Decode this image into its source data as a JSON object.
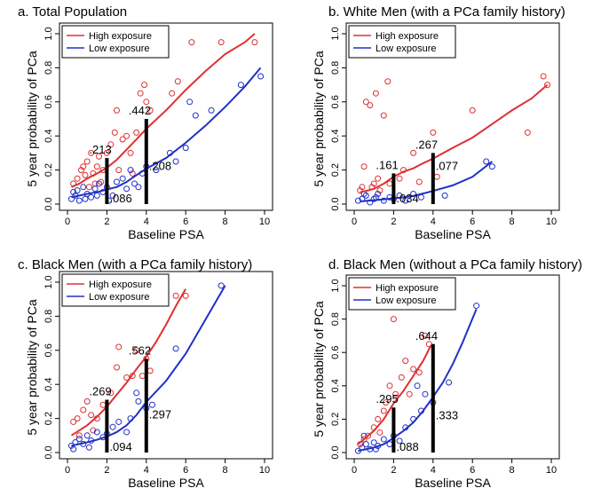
{
  "colors": {
    "high": "#e03030",
    "low": "#2030c8",
    "bar": "#000000",
    "axis": "#000000"
  },
  "chart_data": [
    {
      "type": "line",
      "title": "a. Total Population",
      "xlabel": "Baseline PSA",
      "ylabel": "5 year probability of PCa",
      "xlim": [
        0,
        10
      ],
      "ylim": [
        0,
        1.0
      ],
      "xticks": [
        "0",
        "2",
        "4",
        "6",
        "8",
        "10"
      ],
      "yticks": [
        "0.0",
        "0.2",
        "0.4",
        "0.6",
        "0.8",
        "1.0"
      ],
      "legend": {
        "position": "top-left",
        "entries": [
          "High exposure",
          "Low exposure"
        ]
      },
      "series": [
        {
          "name": "High exposure",
          "x": [
            0.2,
            0.6,
            1.0,
            1.5,
            2.0,
            2.5,
            3.0,
            3.5,
            4.0,
            5.0,
            6.0,
            7.0,
            8.0,
            9.0,
            9.5
          ],
          "y": [
            0.1,
            0.12,
            0.15,
            0.18,
            0.213,
            0.26,
            0.32,
            0.38,
            0.442,
            0.55,
            0.67,
            0.78,
            0.88,
            0.95,
            1.0
          ]
        },
        {
          "name": "Low exposure",
          "x": [
            0.2,
            0.6,
            1.0,
            1.5,
            2.0,
            2.5,
            3.0,
            3.5,
            4.0,
            5.0,
            6.0,
            7.0,
            8.0,
            9.0,
            9.8
          ],
          "y": [
            0.04,
            0.05,
            0.06,
            0.07,
            0.086,
            0.1,
            0.13,
            0.17,
            0.208,
            0.27,
            0.36,
            0.46,
            0.57,
            0.69,
            0.8
          ]
        }
      ],
      "scatter_high": [
        [
          0.3,
          0.12
        ],
        [
          0.5,
          0.15
        ],
        [
          0.7,
          0.2
        ],
        [
          0.8,
          0.22
        ],
        [
          1.0,
          0.25
        ],
        [
          1.2,
          0.3
        ],
        [
          1.3,
          0.18
        ],
        [
          1.5,
          0.22
        ],
        [
          1.6,
          0.28
        ],
        [
          1.8,
          0.2
        ],
        [
          2.0,
          0.3
        ],
        [
          2.2,
          0.35
        ],
        [
          2.4,
          0.42
        ],
        [
          2.5,
          0.55
        ],
        [
          2.8,
          0.38
        ],
        [
          3.0,
          0.4
        ],
        [
          3.2,
          0.3
        ],
        [
          3.5,
          0.42
        ],
        [
          3.7,
          0.65
        ],
        [
          3.9,
          0.7
        ],
        [
          4.0,
          0.6
        ],
        [
          4.2,
          0.55
        ],
        [
          5.3,
          0.65
        ],
        [
          5.6,
          0.72
        ],
        [
          6.3,
          0.95
        ],
        [
          7.8,
          0.95
        ],
        [
          9.5,
          0.95
        ],
        [
          1.1,
          0.1
        ],
        [
          0.9,
          0.17
        ],
        [
          1.4,
          0.12
        ],
        [
          1.7,
          0.13
        ],
        [
          2.6,
          0.2
        ],
        [
          3.3,
          0.18
        ]
      ],
      "scatter_low": [
        [
          0.2,
          0.03
        ],
        [
          0.4,
          0.05
        ],
        [
          0.5,
          0.08
        ],
        [
          0.6,
          0.02
        ],
        [
          0.8,
          0.1
        ],
        [
          1.0,
          0.06
        ],
        [
          1.2,
          0.04
        ],
        [
          1.4,
          0.09
        ],
        [
          1.6,
          0.12
        ],
        [
          1.8,
          0.07
        ],
        [
          2.0,
          0.1
        ],
        [
          2.3,
          0.05
        ],
        [
          2.5,
          0.13
        ],
        [
          2.8,
          0.15
        ],
        [
          3.0,
          0.09
        ],
        [
          3.2,
          0.2
        ],
        [
          3.4,
          0.12
        ],
        [
          3.6,
          0.1
        ],
        [
          3.8,
          0.18
        ],
        [
          4.0,
          0.22
        ],
        [
          4.5,
          0.2
        ],
        [
          5.2,
          0.3
        ],
        [
          5.5,
          0.25
        ],
        [
          6.2,
          0.6
        ],
        [
          6.5,
          0.52
        ],
        [
          7.3,
          0.55
        ],
        [
          8.8,
          0.7
        ],
        [
          9.8,
          0.75
        ],
        [
          6.0,
          0.33
        ],
        [
          0.3,
          0.07
        ],
        [
          0.9,
          0.03
        ],
        [
          1.5,
          0.05
        ],
        [
          2.1,
          0.02
        ]
      ],
      "bars": [
        {
          "x": 2,
          "y": 0.27,
          "label": ".213",
          "label_low": ".086"
        },
        {
          "x": 4,
          "y": 0.5,
          "label": ".442",
          "label_low": ".208"
        }
      ]
    },
    {
      "type": "line",
      "title": "b. White Men (with a PCa family history)",
      "xlabel": "Baseline PSA",
      "ylabel": "5 year probability of PCa",
      "xlim": [
        0,
        10
      ],
      "ylim": [
        0,
        1.0
      ],
      "xticks": [
        "0",
        "2",
        "4",
        "6",
        "8",
        "10"
      ],
      "yticks": [
        "0.0",
        "0.2",
        "0.4",
        "0.6",
        "0.8",
        "1.0"
      ],
      "legend": {
        "position": "top-left",
        "entries": [
          "High exposure",
          "Low exposure"
        ]
      },
      "series": [
        {
          "name": "High exposure",
          "x": [
            0.3,
            0.7,
            1.0,
            1.5,
            2.0,
            2.5,
            3.0,
            3.5,
            4.0,
            5.0,
            6.0,
            7.0,
            8.0,
            9.0,
            9.8
          ],
          "y": [
            0.07,
            0.08,
            0.09,
            0.12,
            0.161,
            0.19,
            0.21,
            0.24,
            0.267,
            0.33,
            0.39,
            0.47,
            0.55,
            0.62,
            0.7
          ]
        },
        {
          "name": "Low exposure",
          "x": [
            0.3,
            0.7,
            1.0,
            1.5,
            2.0,
            2.5,
            3.0,
            3.5,
            4.0,
            5.0,
            6.0,
            7.0
          ],
          "y": [
            0.015,
            0.02,
            0.022,
            0.028,
            0.034,
            0.04,
            0.048,
            0.062,
            0.077,
            0.11,
            0.16,
            0.25
          ]
        }
      ],
      "scatter_high": [
        [
          0.3,
          0.08
        ],
        [
          0.5,
          0.22
        ],
        [
          0.6,
          0.6
        ],
        [
          0.8,
          0.58
        ],
        [
          0.9,
          0.1
        ],
        [
          1.0,
          0.12
        ],
        [
          1.1,
          0.65
        ],
        [
          1.2,
          0.15
        ],
        [
          1.5,
          0.52
        ],
        [
          1.7,
          0.72
        ],
        [
          1.8,
          0.12
        ],
        [
          2.3,
          0.15
        ],
        [
          2.5,
          0.2
        ],
        [
          3.0,
          0.3
        ],
        [
          3.3,
          0.13
        ],
        [
          4.0,
          0.42
        ],
        [
          4.2,
          0.16
        ],
        [
          6.0,
          0.55
        ],
        [
          8.8,
          0.42
        ],
        [
          9.6,
          0.75
        ],
        [
          9.8,
          0.7
        ],
        [
          0.4,
          0.1
        ],
        [
          1.3,
          0.08
        ]
      ],
      "scatter_low": [
        [
          0.2,
          0.02
        ],
        [
          0.4,
          0.03
        ],
        [
          0.6,
          0.05
        ],
        [
          0.8,
          0.01
        ],
        [
          1.0,
          0.03
        ],
        [
          1.2,
          0.06
        ],
        [
          1.5,
          0.02
        ],
        [
          1.8,
          0.04
        ],
        [
          2.0,
          0.03
        ],
        [
          2.3,
          0.05
        ],
        [
          2.6,
          0.02
        ],
        [
          3.0,
          0.06
        ],
        [
          3.4,
          0.04
        ],
        [
          4.6,
          0.05
        ],
        [
          6.7,
          0.25
        ],
        [
          7.0,
          0.22
        ],
        [
          0.5,
          0.06
        ],
        [
          1.1,
          0.04
        ]
      ],
      "bars": [
        {
          "x": 2,
          "y": 0.18,
          "label": ".161",
          "label_low": ".034"
        },
        {
          "x": 4,
          "y": 0.3,
          "label": ".267",
          "label_low": ".077"
        }
      ]
    },
    {
      "type": "line",
      "title": "c. Black Men (with a PCa family history)",
      "xlabel": "Baseline PSA",
      "ylabel": "5 year probability of PCa",
      "xlim": [
        0,
        10
      ],
      "ylim": [
        0,
        1.0
      ],
      "xticks": [
        "0",
        "2",
        "4",
        "6",
        "8",
        "10"
      ],
      "yticks": [
        "0.0",
        "0.2",
        "0.4",
        "0.6",
        "0.8",
        "1.0"
      ],
      "legend": {
        "position": "top-left",
        "entries": [
          "High exposure",
          "Low exposure"
        ]
      },
      "series": [
        {
          "name": "High exposure",
          "x": [
            0.2,
            0.6,
            1.0,
            1.5,
            2.0,
            2.5,
            3.0,
            3.5,
            4.0,
            4.5,
            5.0,
            5.5,
            6.0
          ],
          "y": [
            0.1,
            0.13,
            0.16,
            0.21,
            0.269,
            0.34,
            0.41,
            0.49,
            0.562,
            0.65,
            0.75,
            0.86,
            0.96
          ]
        },
        {
          "name": "Low exposure",
          "x": [
            0.2,
            0.6,
            1.0,
            1.5,
            2.0,
            2.5,
            3.0,
            3.5,
            4.0,
            5.0,
            6.0,
            7.0,
            8.0
          ],
          "y": [
            0.04,
            0.05,
            0.06,
            0.075,
            0.094,
            0.12,
            0.16,
            0.22,
            0.297,
            0.42,
            0.58,
            0.78,
            0.98
          ]
        }
      ],
      "scatter_high": [
        [
          0.3,
          0.18
        ],
        [
          0.5,
          0.2
        ],
        [
          0.8,
          0.25
        ],
        [
          1.0,
          0.3
        ],
        [
          1.2,
          0.22
        ],
        [
          1.5,
          0.2
        ],
        [
          1.8,
          0.28
        ],
        [
          2.2,
          0.35
        ],
        [
          2.5,
          0.5
        ],
        [
          2.6,
          0.62
        ],
        [
          3.0,
          0.44
        ],
        [
          3.3,
          0.45
        ],
        [
          3.5,
          0.6
        ],
        [
          3.8,
          0.45
        ],
        [
          4.0,
          0.55
        ],
        [
          4.2,
          0.48
        ],
        [
          5.5,
          0.92
        ],
        [
          6.0,
          0.92
        ],
        [
          0.6,
          0.1
        ],
        [
          1.3,
          0.13
        ]
      ],
      "scatter_low": [
        [
          0.2,
          0.04
        ],
        [
          0.4,
          0.06
        ],
        [
          0.6,
          0.08
        ],
        [
          0.8,
          0.05
        ],
        [
          1.0,
          0.1
        ],
        [
          1.2,
          0.07
        ],
        [
          1.5,
          0.12
        ],
        [
          1.8,
          0.09
        ],
        [
          2.0,
          0.11
        ],
        [
          2.3,
          0.15
        ],
        [
          2.6,
          0.18
        ],
        [
          3.0,
          0.12
        ],
        [
          3.2,
          0.2
        ],
        [
          3.5,
          0.35
        ],
        [
          3.6,
          0.3
        ],
        [
          4.0,
          0.26
        ],
        [
          4.3,
          0.28
        ],
        [
          5.5,
          0.61
        ],
        [
          7.8,
          0.98
        ],
        [
          0.3,
          0.02
        ],
        [
          1.1,
          0.03
        ]
      ],
      "bars": [
        {
          "x": 2,
          "y": 0.31,
          "label": ".269",
          "label_low": ".094"
        },
        {
          "x": 4,
          "y": 0.55,
          "label": ".562",
          "label_low": ".297"
        }
      ]
    },
    {
      "type": "line",
      "title": "d. Black Men (without a PCa family history)",
      "xlabel": "Baseline PSA",
      "ylabel": "5 year probability of PCa",
      "xlim": [
        0,
        10
      ],
      "ylim": [
        0,
        1.0
      ],
      "xticks": [
        "0",
        "2",
        "4",
        "6",
        "8",
        "10"
      ],
      "yticks": [
        "0.0",
        "0.2",
        "0.4",
        "0.6",
        "0.8",
        "1.0"
      ],
      "legend": {
        "position": "top-left",
        "entries": [
          "High exposure",
          "Low exposure"
        ]
      },
      "series": [
        {
          "name": "High exposure",
          "x": [
            0.2,
            0.6,
            1.0,
            1.5,
            2.0,
            2.5,
            3.0,
            3.5,
            3.9
          ],
          "y": [
            0.05,
            0.09,
            0.13,
            0.2,
            0.295,
            0.37,
            0.46,
            0.55,
            0.644
          ]
        },
        {
          "name": "Low exposure",
          "x": [
            0.2,
            0.6,
            1.0,
            1.5,
            2.0,
            2.5,
            3.0,
            3.5,
            4.0,
            4.5,
            5.0,
            5.5,
            6.2
          ],
          "y": [
            0.01,
            0.02,
            0.03,
            0.05,
            0.088,
            0.13,
            0.18,
            0.25,
            0.333,
            0.42,
            0.53,
            0.66,
            0.86
          ]
        }
      ],
      "scatter_high": [
        [
          0.3,
          0.05
        ],
        [
          0.5,
          0.08
        ],
        [
          0.7,
          0.1
        ],
        [
          1.0,
          0.15
        ],
        [
          1.2,
          0.2
        ],
        [
          1.5,
          0.25
        ],
        [
          1.8,
          0.4
        ],
        [
          2.0,
          0.8
        ],
        [
          2.1,
          0.35
        ],
        [
          2.4,
          0.45
        ],
        [
          2.6,
          0.55
        ],
        [
          2.8,
          0.35
        ],
        [
          3.0,
          0.5
        ],
        [
          3.3,
          0.48
        ],
        [
          3.6,
          0.7
        ],
        [
          3.8,
          0.65
        ],
        [
          1.3,
          0.12
        ],
        [
          1.6,
          0.3
        ]
      ],
      "scatter_low": [
        [
          0.2,
          0.01
        ],
        [
          0.4,
          0.03
        ],
        [
          0.6,
          0.05
        ],
        [
          0.8,
          0.02
        ],
        [
          1.0,
          0.06
        ],
        [
          1.2,
          0.04
        ],
        [
          1.5,
          0.08
        ],
        [
          1.8,
          0.05
        ],
        [
          2.0,
          0.1
        ],
        [
          2.3,
          0.07
        ],
        [
          2.6,
          0.15
        ],
        [
          3.0,
          0.2
        ],
        [
          3.2,
          0.4
        ],
        [
          3.4,
          0.25
        ],
        [
          3.6,
          0.35
        ],
        [
          4.0,
          0.3
        ],
        [
          4.8,
          0.42
        ],
        [
          6.2,
          0.88
        ],
        [
          0.5,
          0.1
        ],
        [
          1.1,
          0.02
        ]
      ],
      "bars": [
        {
          "x": 2,
          "y": 0.27,
          "label": ".295",
          "label_low": ".088"
        },
        {
          "x": 4,
          "y": 0.65,
          "label": ".644",
          "label_low": ".333"
        }
      ]
    }
  ]
}
